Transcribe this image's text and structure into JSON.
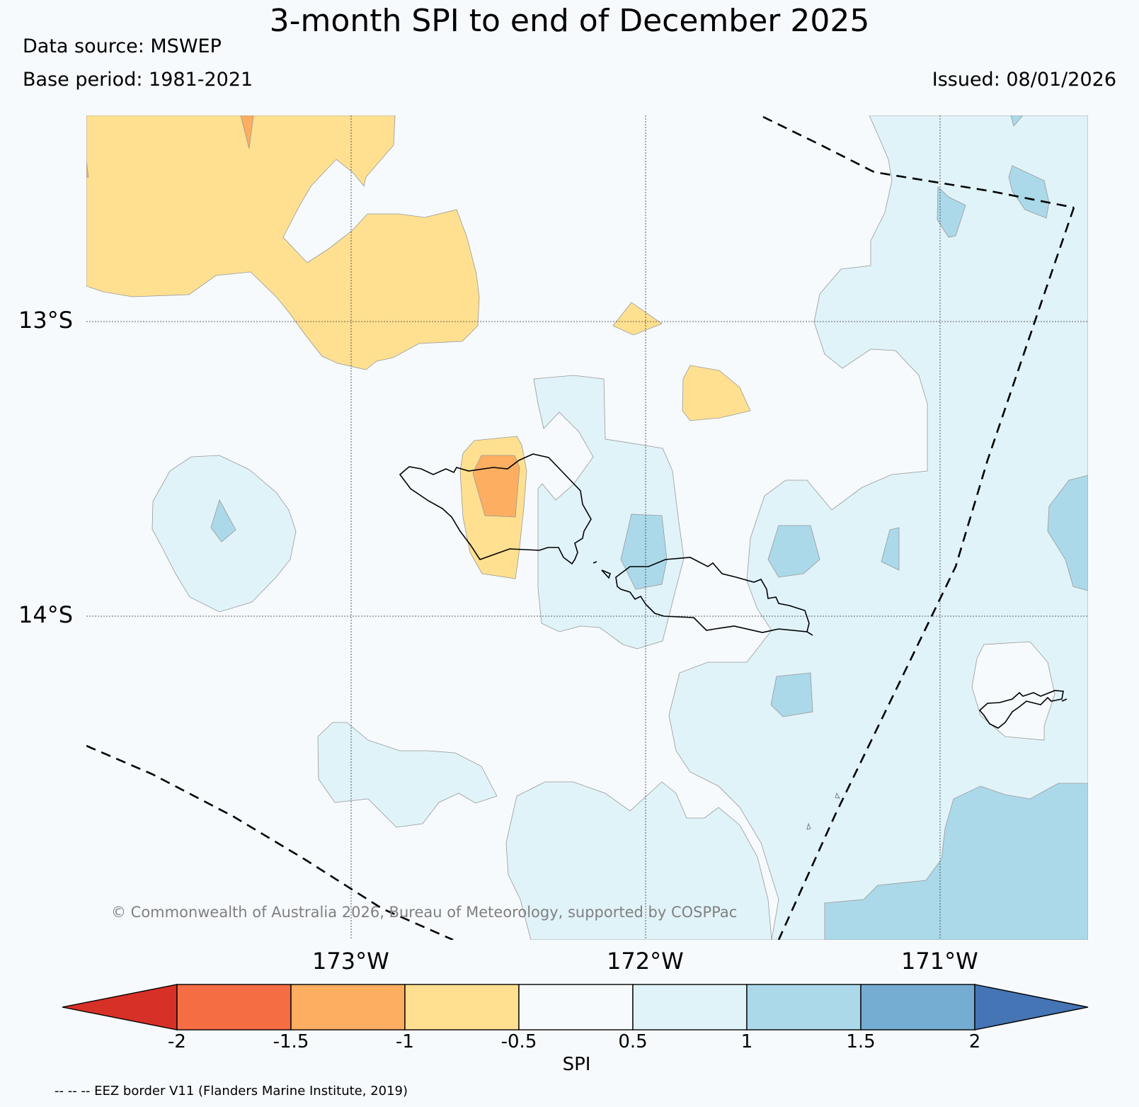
{
  "header": {
    "title": "3-month SPI to end of December 2025",
    "data_source": "Data source: MSWEP",
    "base_period": "Base period: 1981-2021",
    "issued": "Issued: 08/01/2026"
  },
  "map": {
    "latitude_labels": [
      "13°S",
      "14°S"
    ],
    "longitude_labels": [
      "173°W",
      "172°W",
      "171°W"
    ],
    "copyright": "© Commonwealth of Australia 2026, Bureau of Meteorology, supported by COSPPac",
    "eez_note": "-- -- -- EEZ border V11 (Flanders Marine Institute, 2019)"
  },
  "colorbar": {
    "label": "SPI",
    "ticks": [
      "-2",
      "-1.5",
      "-1",
      "-0.5",
      "0.5",
      "1",
      "1.5",
      "2"
    ],
    "colors": [
      "#d73027",
      "#f46d43",
      "#fdae61",
      "#fee090",
      "#f6fafd",
      "#e0f3f8",
      "#abd9e9",
      "#74add1",
      "#4575b4"
    ]
  },
  "colors": {
    "dry_moderate": "#fee090",
    "dry_strong": "#fdae61",
    "wet_light": "#e0f3f8",
    "wet_moderate": "#abd9e9",
    "background": "#f6fafd"
  }
}
